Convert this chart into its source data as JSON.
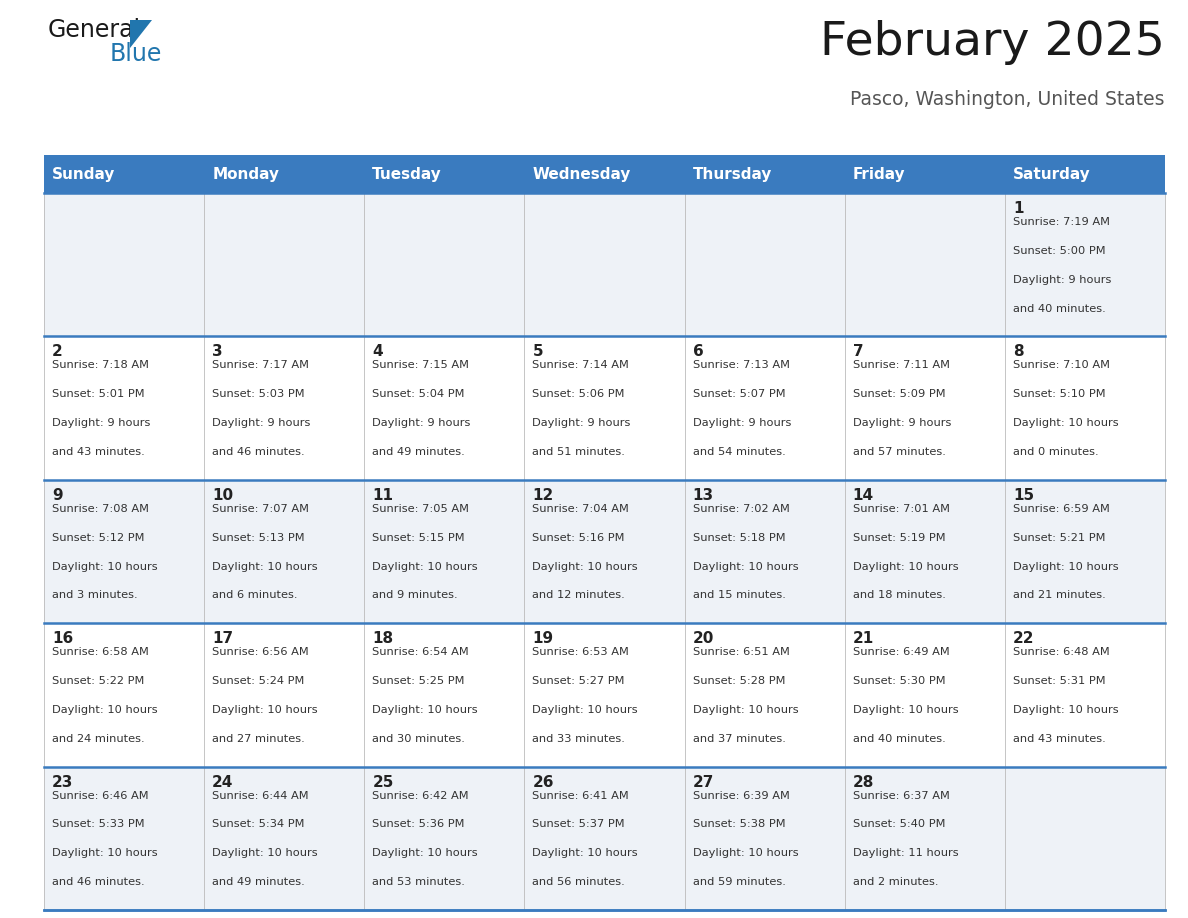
{
  "title": "February 2025",
  "subtitle": "Pasco, Washington, United States",
  "header_bg": "#3a7bbf",
  "header_text_color": "#ffffff",
  "header_days": [
    "Sunday",
    "Monday",
    "Tuesday",
    "Wednesday",
    "Thursday",
    "Friday",
    "Saturday"
  ],
  "row_bg_odd": "#eef2f7",
  "row_bg_even": "#ffffff",
  "cell_text_color": "#333333",
  "day_num_color": "#222222",
  "divider_color": "#3a7bbf",
  "days": [
    {
      "day": 1,
      "col": 6,
      "row": 0,
      "sunrise": "7:19 AM",
      "sunset": "5:00 PM",
      "daylight": "9 hours and 40 minutes."
    },
    {
      "day": 2,
      "col": 0,
      "row": 1,
      "sunrise": "7:18 AM",
      "sunset": "5:01 PM",
      "daylight": "9 hours and 43 minutes."
    },
    {
      "day": 3,
      "col": 1,
      "row": 1,
      "sunrise": "7:17 AM",
      "sunset": "5:03 PM",
      "daylight": "9 hours and 46 minutes."
    },
    {
      "day": 4,
      "col": 2,
      "row": 1,
      "sunrise": "7:15 AM",
      "sunset": "5:04 PM",
      "daylight": "9 hours and 49 minutes."
    },
    {
      "day": 5,
      "col": 3,
      "row": 1,
      "sunrise": "7:14 AM",
      "sunset": "5:06 PM",
      "daylight": "9 hours and 51 minutes."
    },
    {
      "day": 6,
      "col": 4,
      "row": 1,
      "sunrise": "7:13 AM",
      "sunset": "5:07 PM",
      "daylight": "9 hours and 54 minutes."
    },
    {
      "day": 7,
      "col": 5,
      "row": 1,
      "sunrise": "7:11 AM",
      "sunset": "5:09 PM",
      "daylight": "9 hours and 57 minutes."
    },
    {
      "day": 8,
      "col": 6,
      "row": 1,
      "sunrise": "7:10 AM",
      "sunset": "5:10 PM",
      "daylight": "10 hours and 0 minutes."
    },
    {
      "day": 9,
      "col": 0,
      "row": 2,
      "sunrise": "7:08 AM",
      "sunset": "5:12 PM",
      "daylight": "10 hours and 3 minutes."
    },
    {
      "day": 10,
      "col": 1,
      "row": 2,
      "sunrise": "7:07 AM",
      "sunset": "5:13 PM",
      "daylight": "10 hours and 6 minutes."
    },
    {
      "day": 11,
      "col": 2,
      "row": 2,
      "sunrise": "7:05 AM",
      "sunset": "5:15 PM",
      "daylight": "10 hours and 9 minutes."
    },
    {
      "day": 12,
      "col": 3,
      "row": 2,
      "sunrise": "7:04 AM",
      "sunset": "5:16 PM",
      "daylight": "10 hours and 12 minutes."
    },
    {
      "day": 13,
      "col": 4,
      "row": 2,
      "sunrise": "7:02 AM",
      "sunset": "5:18 PM",
      "daylight": "10 hours and 15 minutes."
    },
    {
      "day": 14,
      "col": 5,
      "row": 2,
      "sunrise": "7:01 AM",
      "sunset": "5:19 PM",
      "daylight": "10 hours and 18 minutes."
    },
    {
      "day": 15,
      "col": 6,
      "row": 2,
      "sunrise": "6:59 AM",
      "sunset": "5:21 PM",
      "daylight": "10 hours and 21 minutes."
    },
    {
      "day": 16,
      "col": 0,
      "row": 3,
      "sunrise": "6:58 AM",
      "sunset": "5:22 PM",
      "daylight": "10 hours and 24 minutes."
    },
    {
      "day": 17,
      "col": 1,
      "row": 3,
      "sunrise": "6:56 AM",
      "sunset": "5:24 PM",
      "daylight": "10 hours and 27 minutes."
    },
    {
      "day": 18,
      "col": 2,
      "row": 3,
      "sunrise": "6:54 AM",
      "sunset": "5:25 PM",
      "daylight": "10 hours and 30 minutes."
    },
    {
      "day": 19,
      "col": 3,
      "row": 3,
      "sunrise": "6:53 AM",
      "sunset": "5:27 PM",
      "daylight": "10 hours and 33 minutes."
    },
    {
      "day": 20,
      "col": 4,
      "row": 3,
      "sunrise": "6:51 AM",
      "sunset": "5:28 PM",
      "daylight": "10 hours and 37 minutes."
    },
    {
      "day": 21,
      "col": 5,
      "row": 3,
      "sunrise": "6:49 AM",
      "sunset": "5:30 PM",
      "daylight": "10 hours and 40 minutes."
    },
    {
      "day": 22,
      "col": 6,
      "row": 3,
      "sunrise": "6:48 AM",
      "sunset": "5:31 PM",
      "daylight": "10 hours and 43 minutes."
    },
    {
      "day": 23,
      "col": 0,
      "row": 4,
      "sunrise": "6:46 AM",
      "sunset": "5:33 PM",
      "daylight": "10 hours and 46 minutes."
    },
    {
      "day": 24,
      "col": 1,
      "row": 4,
      "sunrise": "6:44 AM",
      "sunset": "5:34 PM",
      "daylight": "10 hours and 49 minutes."
    },
    {
      "day": 25,
      "col": 2,
      "row": 4,
      "sunrise": "6:42 AM",
      "sunset": "5:36 PM",
      "daylight": "10 hours and 53 minutes."
    },
    {
      "day": 26,
      "col": 3,
      "row": 4,
      "sunrise": "6:41 AM",
      "sunset": "5:37 PM",
      "daylight": "10 hours and 56 minutes."
    },
    {
      "day": 27,
      "col": 4,
      "row": 4,
      "sunrise": "6:39 AM",
      "sunset": "5:38 PM",
      "daylight": "10 hours and 59 minutes."
    },
    {
      "day": 28,
      "col": 5,
      "row": 4,
      "sunrise": "6:37 AM",
      "sunset": "5:40 PM",
      "daylight": "11 hours and 2 minutes."
    }
  ],
  "logo_general_color": "#1a1a1a",
  "logo_blue_color": "#2176ae",
  "logo_triangle_color": "#2176ae"
}
